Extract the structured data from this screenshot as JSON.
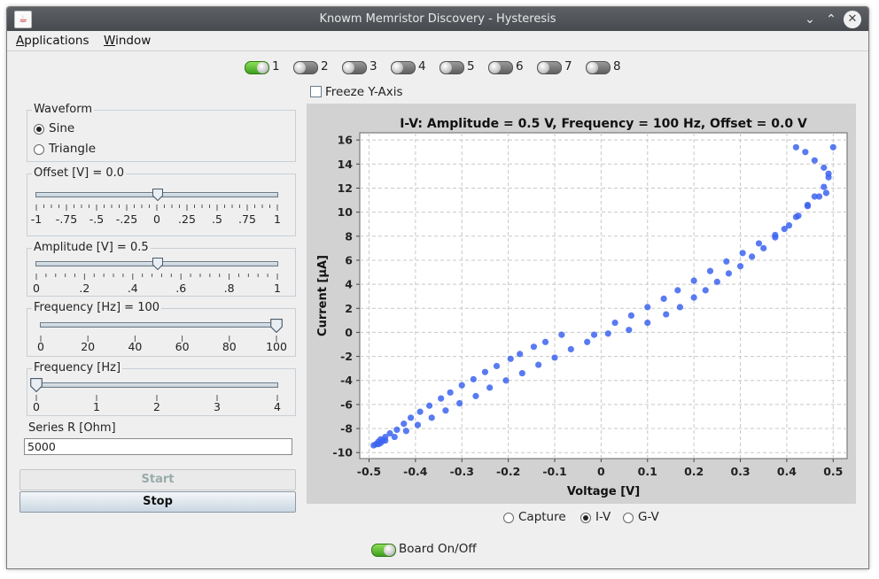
{
  "window": {
    "title": "Knowm Memristor Discovery - Hysteresis"
  },
  "menu": [
    {
      "mnemonic": "A",
      "rest": "pplications"
    },
    {
      "mnemonic": "W",
      "rest": "indow"
    }
  ],
  "channels": [
    {
      "label": "1",
      "on": true
    },
    {
      "label": "2",
      "on": false
    },
    {
      "label": "3",
      "on": false
    },
    {
      "label": "4",
      "on": false
    },
    {
      "label": "5",
      "on": false
    },
    {
      "label": "6",
      "on": false
    },
    {
      "label": "7",
      "on": false
    },
    {
      "label": "8",
      "on": false
    }
  ],
  "waveform": {
    "title": "Waveform",
    "options": [
      "Sine",
      "Triangle"
    ],
    "selected": "Sine"
  },
  "offset": {
    "title": "Offset [V] = 0.0",
    "value": 0.0,
    "min": -1,
    "max": 1,
    "labels": [
      "-1",
      "-.75",
      "-.5",
      "-.25",
      "0",
      ".25",
      ".5",
      ".75",
      "1"
    ]
  },
  "amplitude": {
    "title": "Amplitude [V] = 0.5",
    "value": 0.5,
    "min": 0,
    "max": 1,
    "labels": [
      "0",
      ".2",
      ".4",
      ".6",
      ".8",
      "1"
    ]
  },
  "frequency": {
    "title": "Frequency [Hz] = 100",
    "value": 100,
    "min": 0,
    "max": 100,
    "labels": [
      "0",
      "20",
      "40",
      "60",
      "80",
      "100"
    ]
  },
  "frequency2": {
    "title": "Frequency [Hz]",
    "value": 0,
    "min": 0,
    "max": 4,
    "labels": [
      "0",
      "1",
      "2",
      "3",
      "4"
    ]
  },
  "series_r": {
    "label": "Series R [Ohm]",
    "value": "5000"
  },
  "buttons": {
    "start": "Start",
    "stop": "Stop"
  },
  "freeze": {
    "label": "Freeze Y-Axis",
    "checked": false
  },
  "view_modes": {
    "options": [
      "Capture",
      "I-V",
      "G-V"
    ],
    "selected": "I-V"
  },
  "board": {
    "label": "Board On/Off",
    "on": true
  },
  "chart_data": {
    "type": "scatter",
    "title": "I-V: Amplitude = 0.5 V, Frequency = 100 Hz, Offset = 0.0 V",
    "xlabel": "Voltage [V]",
    "ylabel": "Current [µA]",
    "xlim": [
      -0.52,
      0.53
    ],
    "ylim": [
      -10.5,
      16.6
    ],
    "xticks": [
      "-0.5",
      "-0.4",
      "-0.3",
      "-0.2",
      "-0.1",
      "0",
      "0.1",
      "0.2",
      "0.3",
      "0.4",
      "0.5"
    ],
    "yticks": [
      "-10",
      "-8",
      "-6",
      "-4",
      "-2",
      "0",
      "2",
      "4",
      "6",
      "8",
      "10",
      "12",
      "14",
      "16"
    ],
    "grid": true,
    "series": [
      {
        "color": "#3c64f0",
        "points": [
          [
            -0.49,
            -9.4
          ],
          [
            -0.485,
            -9.3
          ],
          [
            -0.48,
            -9.1
          ],
          [
            -0.475,
            -8.9
          ],
          [
            -0.465,
            -8.7
          ],
          [
            -0.455,
            -8.4
          ],
          [
            -0.44,
            -8.1
          ],
          [
            -0.425,
            -7.6
          ],
          [
            -0.41,
            -7.1
          ],
          [
            -0.39,
            -6.6
          ],
          [
            -0.37,
            -6.1
          ],
          [
            -0.345,
            -5.5
          ],
          [
            -0.325,
            -5.0
          ],
          [
            -0.3,
            -4.4
          ],
          [
            -0.275,
            -3.9
          ],
          [
            -0.25,
            -3.3
          ],
          [
            -0.225,
            -2.8
          ],
          [
            -0.195,
            -2.2
          ],
          [
            -0.175,
            -1.8
          ],
          [
            -0.145,
            -1.2
          ],
          [
            -0.12,
            -0.8
          ],
          [
            -0.085,
            -0.2
          ],
          [
            -0.015,
            -0.2
          ],
          [
            0.03,
            0.8
          ],
          [
            0.065,
            1.4
          ],
          [
            0.1,
            2.1
          ],
          [
            0.135,
            2.8
          ],
          [
            0.165,
            3.5
          ],
          [
            0.2,
            4.3
          ],
          [
            0.235,
            5.1
          ],
          [
            0.27,
            5.9
          ],
          [
            0.305,
            6.6
          ],
          [
            0.34,
            7.4
          ],
          [
            0.375,
            8.1
          ],
          [
            0.405,
            8.9
          ],
          [
            0.425,
            9.7
          ],
          [
            0.445,
            10.6
          ],
          [
            0.46,
            11.3
          ],
          [
            0.48,
            12.1
          ],
          [
            0.49,
            12.9
          ],
          [
            0.48,
            13.7
          ],
          [
            0.46,
            14.3
          ],
          [
            0.44,
            15.0
          ],
          [
            0.42,
            15.4
          ],
          [
            0.5,
            15.4
          ],
          [
            0.49,
            13.2
          ],
          [
            0.485,
            11.6
          ],
          [
            0.47,
            11.3
          ],
          [
            0.445,
            10.5
          ],
          [
            0.42,
            9.6
          ],
          [
            0.395,
            8.6
          ],
          [
            0.375,
            7.9
          ],
          [
            0.35,
            7.0
          ],
          [
            0.325,
            6.3
          ],
          [
            0.3,
            5.5
          ],
          [
            0.275,
            4.9
          ],
          [
            0.25,
            4.2
          ],
          [
            0.225,
            3.5
          ],
          [
            0.2,
            2.9
          ],
          [
            0.17,
            2.1
          ],
          [
            0.14,
            1.5
          ],
          [
            0.1,
            0.8
          ],
          [
            0.06,
            0.2
          ],
          [
            0.015,
            -0.1
          ],
          [
            -0.03,
            -0.8
          ],
          [
            -0.065,
            -1.4
          ],
          [
            -0.1,
            -2.1
          ],
          [
            -0.135,
            -2.7
          ],
          [
            -0.17,
            -3.4
          ],
          [
            -0.205,
            -4.0
          ],
          [
            -0.24,
            -4.6
          ],
          [
            -0.27,
            -5.3
          ],
          [
            -0.305,
            -5.9
          ],
          [
            -0.335,
            -6.5
          ],
          [
            -0.365,
            -7.1
          ],
          [
            -0.395,
            -7.7
          ],
          [
            -0.42,
            -8.2
          ],
          [
            -0.445,
            -8.7
          ],
          [
            -0.465,
            -9.0
          ],
          [
            -0.48,
            -9.3
          ],
          [
            -0.475,
            -9.2
          ],
          [
            -0.47,
            -9.0
          ]
        ]
      }
    ]
  }
}
